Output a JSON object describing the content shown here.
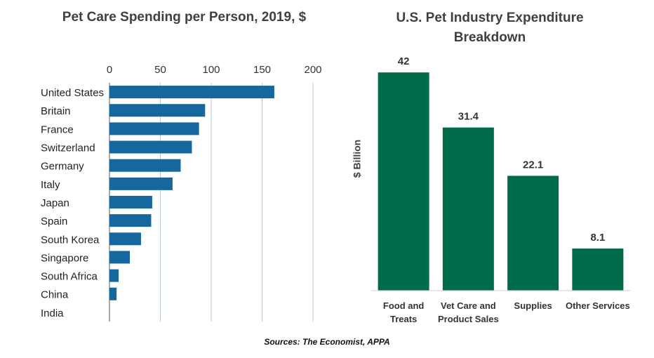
{
  "chart_data": [
    {
      "type": "hbar",
      "title": "Pet Care Spending per Person, 2019, $",
      "categories": [
        "United States",
        "Britain",
        "France",
        "Switzerland",
        "Germany",
        "Italy",
        "Japan",
        "Spain",
        "South Korea",
        "Singapore",
        "South Africa",
        "China",
        "India"
      ],
      "values": [
        162,
        94,
        88,
        81,
        70,
        62,
        42,
        41,
        31,
        20,
        9,
        7,
        0
      ],
      "color": "#15679d",
      "xlim": [
        0,
        200
      ],
      "xticks": [
        0,
        50,
        100,
        150,
        200
      ],
      "grid": true
    },
    {
      "type": "bar",
      "title": "U.S. Pet Industry Expenditure Breakdown",
      "y_label": "$ Billion",
      "categories": [
        "Food and Treats",
        "Vet Care and Product Sales",
        "Supplies",
        "Other Services"
      ],
      "values": [
        42,
        31.4,
        22.1,
        8.1
      ],
      "color": "#006b4a",
      "ylim": [
        0,
        45
      ]
    }
  ],
  "source": "Sources: The Economist, APPA"
}
